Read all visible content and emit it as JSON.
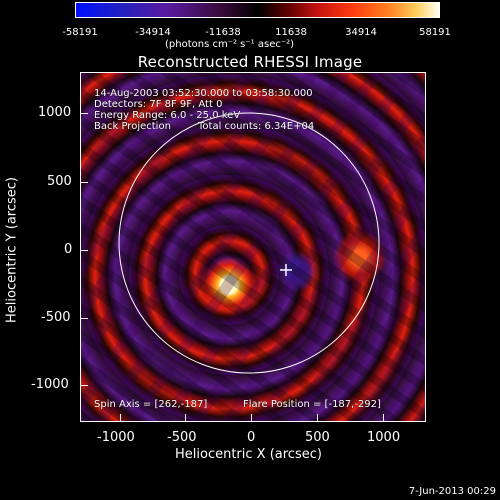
{
  "colorbar": {
    "ticks": [
      "-58191",
      "-34914",
      "-11638",
      "11638",
      "34914",
      "58191"
    ],
    "unit": "(photons cm⁻² s⁻¹ asec⁻²)"
  },
  "title": "Reconstructed RHESSI Image",
  "info": {
    "line1": "14-Aug-2003 03:52:30.000 to 03:58:30.000",
    "line2": "Detectors: 7F 8F 9F, Att 0",
    "line3": "Energy Range: 6.0 - 25.0 keV",
    "line4a": "Back Projection",
    "line4b": "Total counts: 6.34E+04"
  },
  "bottom_text": {
    "spin_axis": "Spin Axis = [262,-187]",
    "flare_position": "Flare Position = [-187,-292]"
  },
  "axes": {
    "xlabel": "Heliocentric X (arcsec)",
    "ylabel": "Heliocentric Y (arcsec)",
    "xticks": [
      "-1000",
      "-500",
      "0",
      "500",
      "1000"
    ],
    "yticks": [
      "1000",
      "500",
      "0",
      "-500",
      "-1000"
    ]
  },
  "footer": "7-Jun-2013 00:29"
}
